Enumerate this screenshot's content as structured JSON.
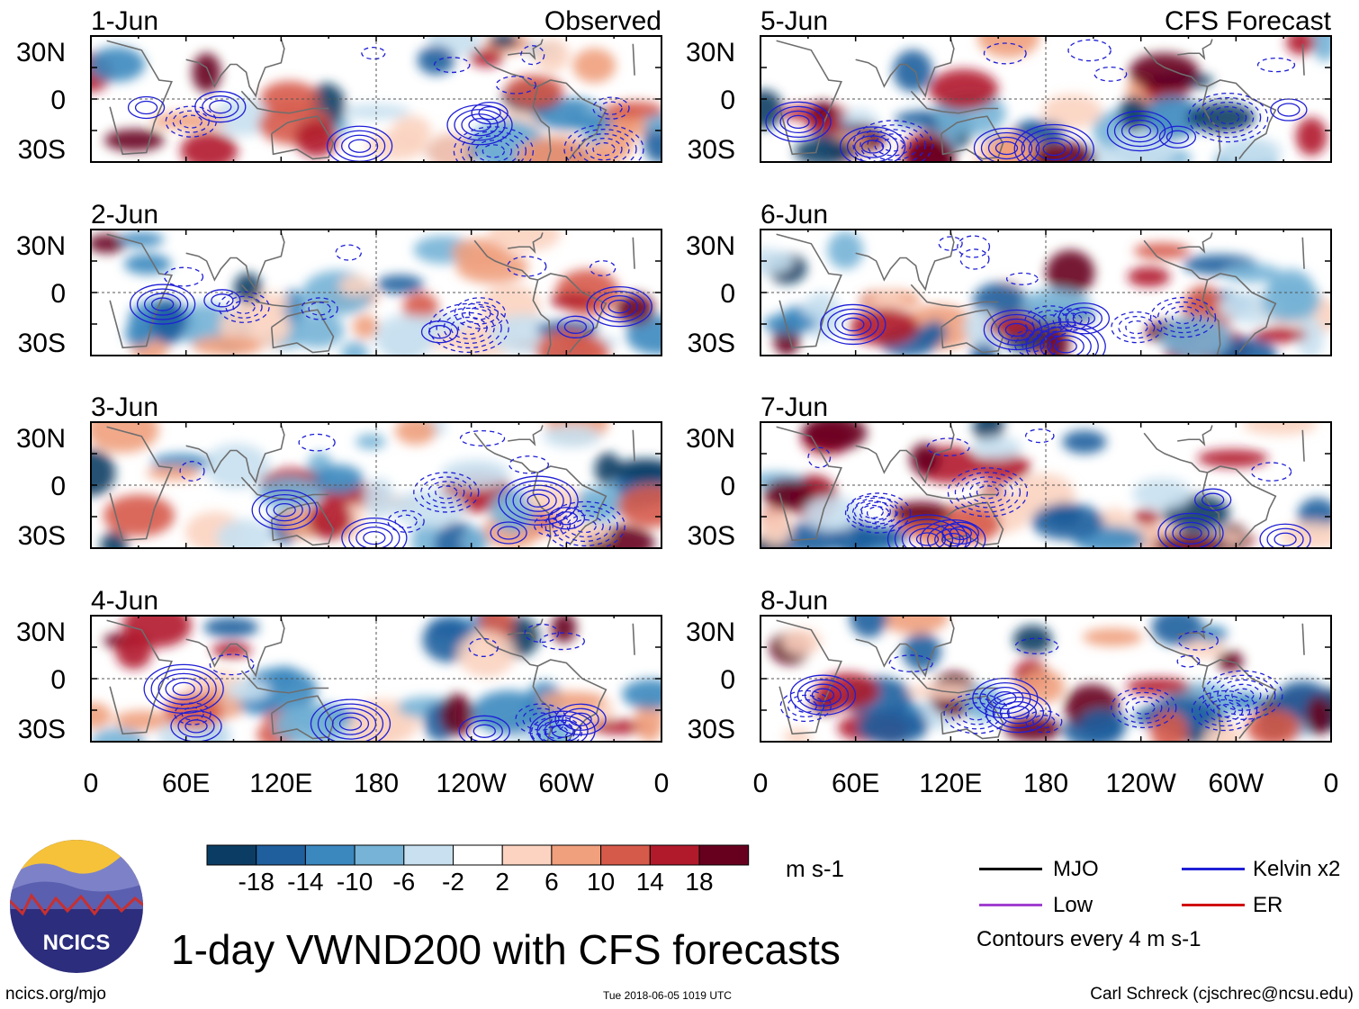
{
  "title": "1-day VWND200 with CFS forecasts",
  "headers": {
    "left": "Observed",
    "right": "CFS Forecast"
  },
  "panels_left": [
    "1-Jun",
    "2-Jun",
    "3-Jun",
    "4-Jun"
  ],
  "panels_right": [
    "5-Jun",
    "6-Jun",
    "7-Jun",
    "8-Jun"
  ],
  "chart_data": {
    "type": "heatmap",
    "variable": "200-hPa meridional wind anomaly (VWND200)",
    "x_ticks": [
      "0",
      "60E",
      "120E",
      "180",
      "120W",
      "60W",
      "0"
    ],
    "y_ticks": [
      "30N",
      "0",
      "30S"
    ],
    "colorbar": {
      "ticks": [
        "-18",
        "-14",
        "-10",
        "-6",
        "-2",
        "2",
        "6",
        "10",
        "14",
        "18"
      ],
      "colors": [
        "#0b3d64",
        "#1f5f9e",
        "#3b88bf",
        "#76b3d6",
        "#c8e0ef",
        "#ffffff",
        "#fbd3c0",
        "#f0a07d",
        "#d65a4a",
        "#b11a2b",
        "#67001f"
      ],
      "units": "m s-1"
    }
  },
  "legend": {
    "items": [
      {
        "label": "MJO",
        "color": "#000000"
      },
      {
        "label": "Kelvin x2",
        "color": "#1f1fd6"
      },
      {
        "label": "Low",
        "color": "#a040d0"
      },
      {
        "label": "ER",
        "color": "#d01010"
      }
    ],
    "note": "Contours every 4 m s-1"
  },
  "logo": {
    "text": "NCICS"
  },
  "footer": {
    "site": "ncics.org/mjo",
    "timestamp": "Tue 2018-06-05 1019 UTC",
    "credit": "Carl Schreck (cjschrec@ncsu.edu)"
  }
}
